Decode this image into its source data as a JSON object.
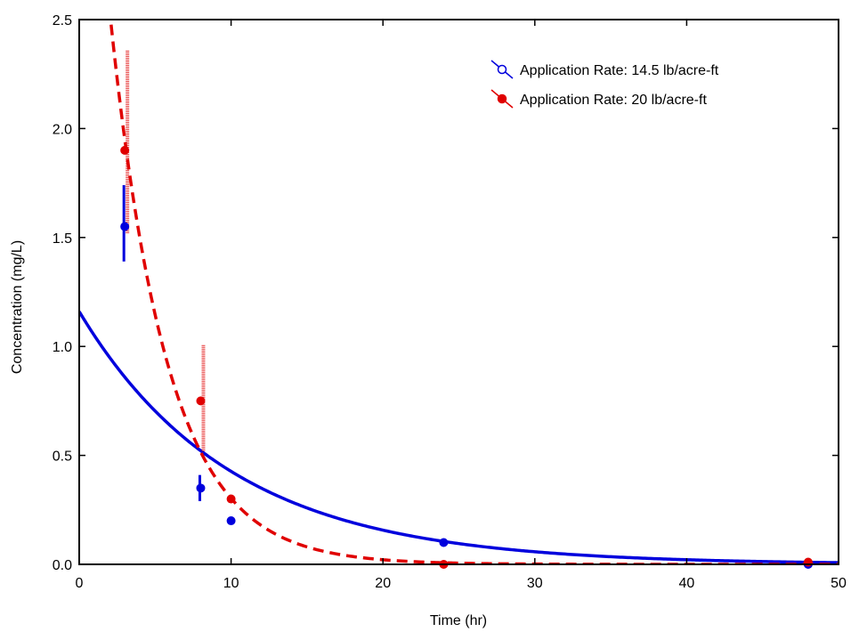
{
  "chart_data": {
    "type": "scatter",
    "title": "",
    "xlabel": "Time (hr)",
    "ylabel": "Concentration (mg/L)",
    "xlim": [
      0,
      50
    ],
    "ylim": [
      0,
      2.5
    ],
    "x_ticks": [
      0,
      10,
      20,
      30,
      40,
      50
    ],
    "y_ticks": [
      0.0,
      0.5,
      1.0,
      1.5,
      2.0,
      2.5
    ],
    "x_tick_labels": [
      "0",
      "10",
      "20",
      "30",
      "40",
      "50"
    ],
    "y_tick_labels": [
      "0.0",
      "0.5",
      "1.0",
      "1.5",
      "2.0",
      "2.5"
    ],
    "grid": false,
    "legend_position": "top-right",
    "series": [
      {
        "name": "Application Rate: 14.5 lb/acre-ft",
        "color": "#0000dd",
        "marker": "circle",
        "points": [
          {
            "x": 3,
            "y": 1.55,
            "err_low": 1.39,
            "err_high": 1.74
          },
          {
            "x": 8,
            "y": 0.35,
            "err_low": 0.29,
            "err_high": 0.41
          },
          {
            "x": 10,
            "y": 0.2
          },
          {
            "x": 24,
            "y": 0.1
          },
          {
            "x": 48,
            "y": 0.0
          }
        ],
        "fit": {
          "style": "solid",
          "model": "exponential",
          "c0": 1.16,
          "k": 0.1
        }
      },
      {
        "name": "Application Rate: 20 lb/acre-ft",
        "color": "#e00000",
        "marker": "circle",
        "points": [
          {
            "x": 3,
            "y": 1.9,
            "err_low": 1.52,
            "err_high": 2.36
          },
          {
            "x": 8,
            "y": 0.75,
            "err_low": 0.52,
            "err_high": 1.01
          },
          {
            "x": 10,
            "y": 0.3
          },
          {
            "x": 24,
            "y": 0.0
          },
          {
            "x": 48,
            "y": 0.01
          }
        ],
        "fit": {
          "style": "dashed",
          "model": "exponential",
          "c0": 4.33,
          "k": 0.266
        }
      }
    ]
  }
}
